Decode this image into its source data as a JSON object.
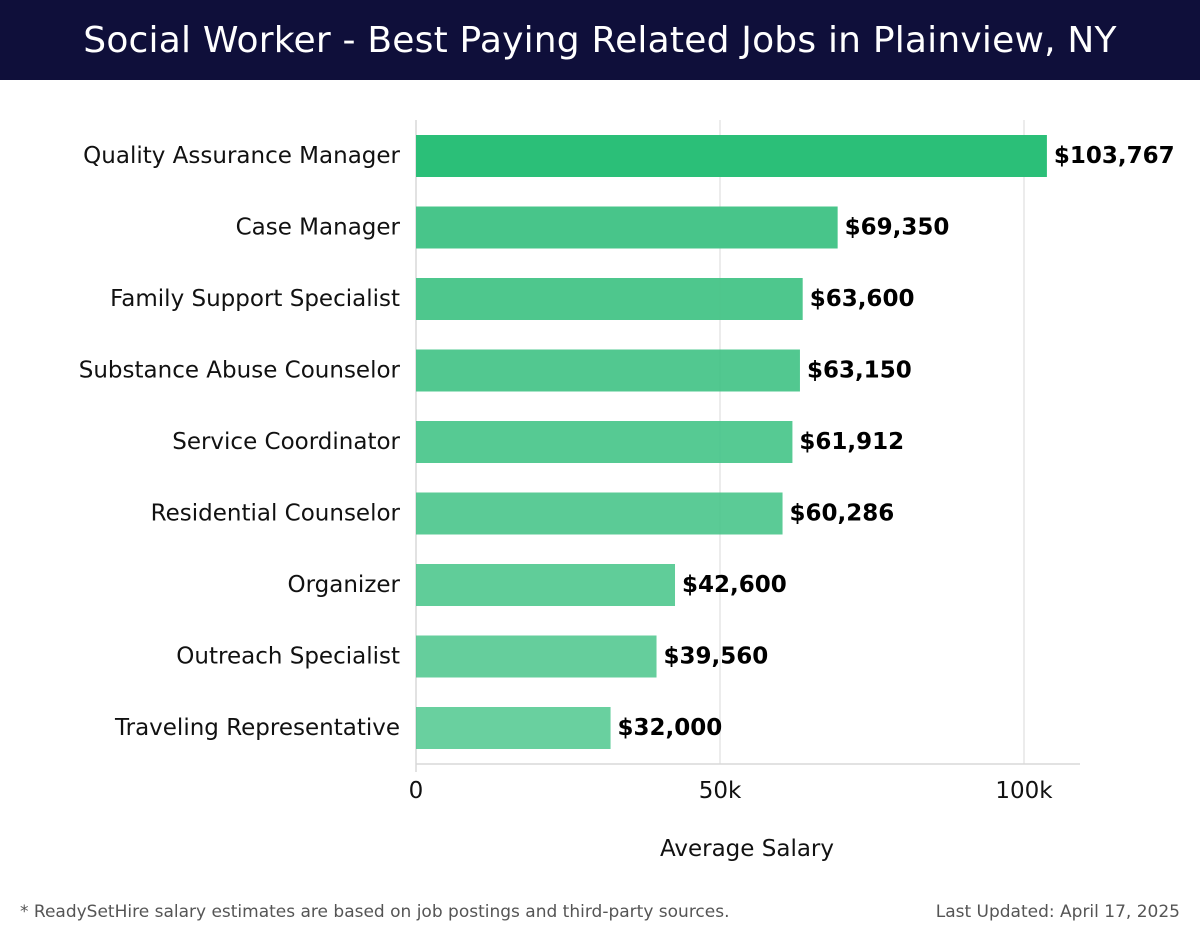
{
  "header": {
    "title": "Social Worker - Best Paying Related Jobs in Plainview, NY"
  },
  "footer": {
    "note": "* ReadySetHire salary estimates are based on job postings and third-party sources.",
    "updated": "Last Updated: April 17, 2025"
  },
  "colors": {
    "header_bg": "#0f0f3a",
    "top_bar": "#2bbf78",
    "bar": "#44c487",
    "grid": "#e6e6e6"
  },
  "chart_data": {
    "type": "bar",
    "orientation": "horizontal",
    "title": "Social Worker - Best Paying Related Jobs in Plainview, NY",
    "xlabel": "Average Salary",
    "ylabel": "",
    "xlim": [
      0,
      109000
    ],
    "x_ticks": [
      0,
      50000,
      100000
    ],
    "x_tick_labels": [
      "0",
      "50k",
      "100k"
    ],
    "grid": true,
    "categories": [
      "Quality Assurance Manager",
      "Case Manager",
      "Family Support Specialist",
      "Substance Abuse Counselor",
      "Service Coordinator",
      "Residential Counselor",
      "Organizer",
      "Outreach Specialist",
      "Traveling Representative"
    ],
    "values": [
      103767,
      69350,
      63600,
      63150,
      61912,
      60286,
      42600,
      39560,
      32000
    ],
    "value_labels": [
      "$103,767",
      "$69,350",
      "$63,600",
      "$63,150",
      "$61,912",
      "$60,286",
      "$42,600",
      "$39,560",
      "$32,000"
    ]
  }
}
